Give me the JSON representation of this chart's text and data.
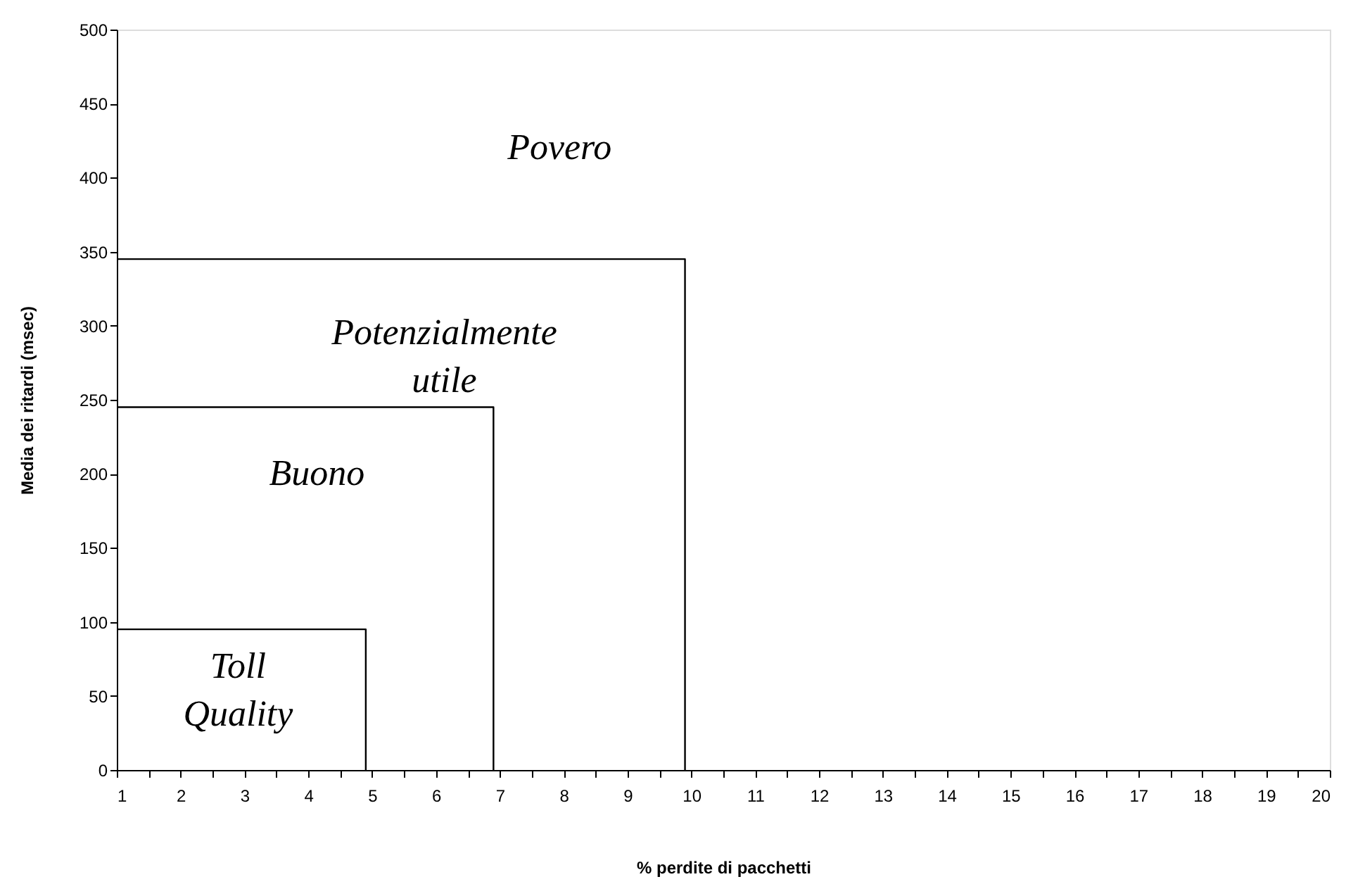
{
  "chart_data": {
    "type": "step",
    "xlabel": "% perdite di pacchetti",
    "ylabel": "Media dei ritardi (msec)",
    "xlim": [
      1,
      20
    ],
    "ylim": [
      0,
      500
    ],
    "xticks": [
      1,
      {
        "value": 1.5,
        "label": null
      },
      2,
      {
        "value": 2.5,
        "label": null
      },
      3,
      {
        "value": 3.5,
        "label": null
      },
      4,
      {
        "value": 4.5,
        "label": null
      },
      5,
      {
        "value": 5.5,
        "label": null
      },
      6,
      {
        "value": 6.5,
        "label": null
      },
      7,
      {
        "value": 7.5,
        "label": null
      },
      8,
      {
        "value": 8.5,
        "label": null
      },
      9,
      {
        "value": 9.5,
        "label": null
      },
      10,
      {
        "value": 10.5,
        "label": null
      },
      11,
      {
        "value": 11.5,
        "label": null
      },
      12,
      {
        "value": 12.5,
        "label": null
      },
      13,
      {
        "value": 13.5,
        "label": null
      },
      14,
      {
        "value": 14.5,
        "label": null
      },
      15,
      {
        "value": 15.5,
        "label": null
      },
      16,
      {
        "value": 16.5,
        "label": null
      },
      17,
      {
        "value": 17.5,
        "label": null
      },
      18,
      {
        "value": 18.5,
        "label": null
      },
      19,
      {
        "value": 19.5,
        "label": null
      },
      20
    ],
    "yticks": [
      0,
      50,
      100,
      150,
      200,
      250,
      300,
      350,
      400,
      450,
      500
    ],
    "grid": false,
    "marker": "none",
    "line_style": "solid",
    "series": [
      {
        "color": "#000000",
        "x": [
          1,
          9.9
        ],
        "values": [
          345,
          0
        ]
      },
      {
        "color": "#000000",
        "x": [
          1,
          6.9
        ],
        "values": [
          245,
          0
        ]
      },
      {
        "color": "#000000",
        "x": [
          1,
          4.9
        ],
        "values": [
          95,
          0
        ]
      }
    ],
    "annotations": [
      "Povero",
      "Potenzialmente\nutile",
      "Buono",
      "Toll\nQuality"
    ]
  }
}
